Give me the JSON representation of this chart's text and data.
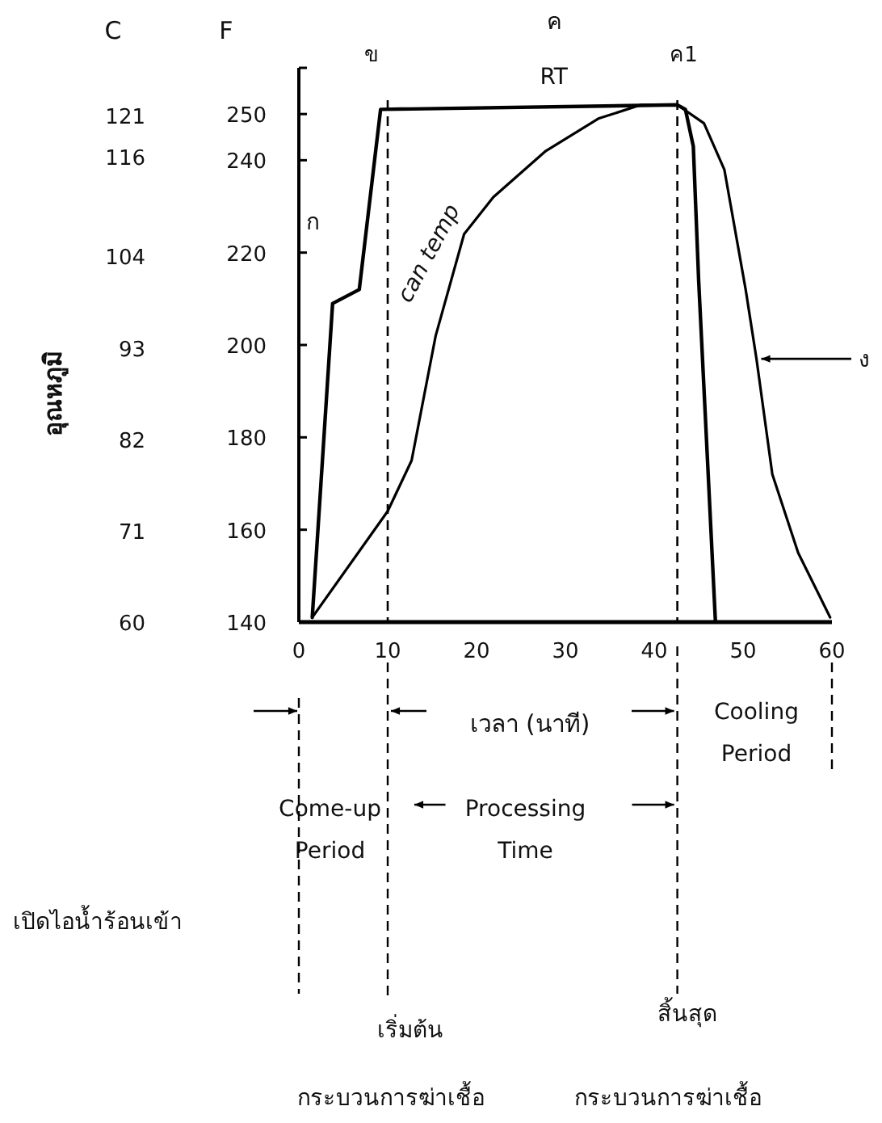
{
  "chart_data": {
    "type": "line",
    "xlabel": "เวลา (นาที)",
    "y2label": "อุณหภูมิ",
    "xlim": [
      0,
      60
    ],
    "xticks": [
      0,
      10,
      20,
      30,
      40,
      50,
      60
    ],
    "ylim": [
      140,
      260
    ],
    "yticks": [
      140,
      160,
      180,
      200,
      220,
      240,
      250
    ],
    "y2lim": [
      60,
      126.7
    ],
    "y2ticks": [
      60,
      71,
      82,
      93,
      104,
      116,
      121
    ],
    "series": [
      {
        "color": "#000000",
        "x": [
          1.5,
          3.8,
          6.8,
          9.2,
          42.6,
          43.5,
          44.4,
          45,
          46.9
        ],
        "values": [
          141,
          209,
          212,
          251,
          252,
          251,
          243,
          214,
          140
        ]
      },
      {
        "name": "can temp",
        "color": "#000000",
        "x": [
          1.5,
          10,
          12.7,
          15.4,
          18.6,
          21.9,
          27.8,
          33.7,
          38.5,
          42.6,
          45.6,
          47.9,
          50.3,
          51.5,
          53.3,
          56.2,
          59.8
        ],
        "values": [
          141,
          164,
          175,
          202,
          224,
          232,
          242,
          249,
          252,
          252,
          248,
          238,
          212,
          197,
          172,
          155,
          141
        ]
      }
    ],
    "ref_lines": [
      {
        "axis": "x",
        "value": 10,
        "label": "ข",
        "line_style": "dashed"
      },
      {
        "axis": "x",
        "value": 42.6,
        "label": "ค1",
        "line_style": "dashed"
      }
    ],
    "annotations": [
      "C",
      "F",
      "ก",
      "ค",
      "RT",
      "ง",
      "Cooling Period",
      "Come-up Period",
      "Processing Time",
      "เปิดไอน้ำร้อนเข้า",
      "เริ่มต้น",
      "กระบวนการฆ่าเชื้อ",
      "สิ้นสุด",
      "กระบวนการฆ่าเชื้อ"
    ],
    "grid": false,
    "marker": "none",
    "line_style": "solid"
  }
}
